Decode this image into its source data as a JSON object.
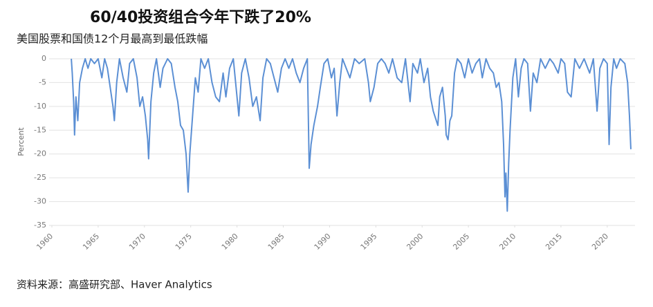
{
  "chart_data": {
    "type": "line",
    "title": "60/40投资组合今年下跌了20%",
    "subtitle": "美国股票和国债12个月最高到最低跌幅",
    "y_label": "Percent",
    "source": "资料来源：高盛研究部、Haver Analytics",
    "color": "#5b8fd4",
    "grid": true,
    "xlim": [
      1960,
      2023
    ],
    "ylim": [
      -35,
      0
    ],
    "xticks": [
      1960,
      1965,
      1970,
      1975,
      1980,
      1985,
      1990,
      1995,
      2000,
      2005,
      2010,
      2015,
      2020
    ],
    "yticks": [
      0,
      -5,
      -10,
      -15,
      -20,
      -25,
      -30,
      -35
    ],
    "x": [
      1962.1,
      1962.2,
      1962.35,
      1962.45,
      1962.6,
      1962.8,
      1963.0,
      1963.3,
      1963.6,
      1963.9,
      1964.2,
      1964.6,
      1965.0,
      1965.4,
      1965.7,
      1966.0,
      1966.3,
      1966.6,
      1966.75,
      1967.0,
      1967.3,
      1967.7,
      1968.1,
      1968.4,
      1968.8,
      1969.2,
      1969.5,
      1969.8,
      1970.1,
      1970.35,
      1970.45,
      1970.7,
      1971.0,
      1971.3,
      1971.7,
      1972.0,
      1972.5,
      1972.9,
      1973.3,
      1973.6,
      1973.9,
      1974.2,
      1974.5,
      1974.72,
      1974.9,
      1975.2,
      1975.5,
      1975.8,
      1976.1,
      1976.5,
      1976.9,
      1977.3,
      1977.7,
      1978.1,
      1978.5,
      1978.8,
      1979.2,
      1979.6,
      1979.9,
      1980.2,
      1980.5,
      1980.9,
      1981.3,
      1981.7,
      1982.1,
      1982.5,
      1982.8,
      1983.2,
      1983.6,
      1984.0,
      1984.4,
      1984.8,
      1985.2,
      1985.6,
      1986.0,
      1986.4,
      1986.8,
      1987.2,
      1987.6,
      1987.8,
      1988.0,
      1988.3,
      1988.7,
      1989.0,
      1989.4,
      1989.8,
      1990.2,
      1990.5,
      1990.8,
      1991.1,
      1991.4,
      1991.8,
      1992.2,
      1992.7,
      1993.2,
      1993.8,
      1994.2,
      1994.4,
      1994.8,
      1995.2,
      1995.6,
      1996.0,
      1996.4,
      1996.8,
      1997.3,
      1997.8,
      1998.2,
      1998.7,
      1999.0,
      1999.5,
      1999.8,
      2000.2,
      2000.6,
      2000.9,
      2001.2,
      2001.7,
      2001.9,
      2002.2,
      2002.5,
      2002.6,
      2002.8,
      2003.0,
      2003.2,
      2003.5,
      2003.8,
      2004.2,
      2004.6,
      2005.0,
      2005.4,
      2005.8,
      2006.2,
      2006.5,
      2006.9,
      2007.3,
      2007.7,
      2008.0,
      2008.3,
      2008.6,
      2008.8,
      2008.95,
      2009.05,
      2009.2,
      2009.35,
      2009.5,
      2009.8,
      2010.1,
      2010.4,
      2010.7,
      2011.0,
      2011.4,
      2011.7,
      2012.0,
      2012.4,
      2012.8,
      2013.3,
      2013.8,
      2014.2,
      2014.7,
      2015.0,
      2015.4,
      2015.7,
      2016.1,
      2016.5,
      2017.0,
      2017.5,
      2018.1,
      2018.5,
      2018.9,
      2019.2,
      2019.6,
      2020.0,
      2020.2,
      2020.4,
      2020.7,
      2021.0,
      2021.4,
      2021.9,
      2022.2,
      2022.4,
      2022.55
    ],
    "values": [
      0,
      -3,
      -9,
      -16,
      -8,
      -13,
      -5,
      -2,
      0,
      -2,
      0,
      -1,
      0,
      -4,
      0,
      -2,
      -6,
      -10,
      -13,
      -5,
      0,
      -4,
      -7,
      -1,
      0,
      -4,
      -10,
      -8,
      -12,
      -17,
      -21,
      -9,
      -3,
      0,
      -6,
      -2,
      0,
      -1,
      -6,
      -9,
      -14,
      -15,
      -20,
      -28,
      -20,
      -12,
      -4,
      -7,
      0,
      -2,
      0,
      -5,
      -8,
      -9,
      -3,
      -8,
      -2,
      0,
      -6,
      -12,
      -3,
      0,
      -4,
      -10,
      -8,
      -13,
      -4,
      0,
      -1,
      -4,
      -7,
      -2,
      0,
      -2,
      0,
      -3,
      -5,
      -2,
      0,
      -23,
      -18,
      -14,
      -10,
      -6,
      -1,
      0,
      -4,
      -2,
      -12,
      -5,
      0,
      -2,
      -4,
      0,
      -1,
      0,
      -5,
      -9,
      -6,
      -1,
      0,
      -1,
      -3,
      0,
      -4,
      -5,
      0,
      -9,
      -1,
      -3,
      0,
      -5,
      -2,
      -8,
      -11,
      -14,
      -8,
      -6,
      -12,
      -16,
      -17,
      -13,
      -12,
      -3,
      0,
      -1,
      -4,
      0,
      -3,
      -1,
      0,
      -4,
      0,
      -2,
      -3,
      -6,
      -5,
      -9,
      -18,
      -29,
      -24,
      -32,
      -22,
      -15,
      -4,
      0,
      -8,
      -2,
      0,
      -1,
      -11,
      -3,
      -5,
      0,
      -2,
      0,
      -1,
      -3,
      0,
      -1,
      -7,
      -8,
      0,
      -2,
      0,
      -3,
      0,
      -11,
      -2,
      0,
      -1,
      -18,
      -6,
      0,
      -2,
      0,
      -1,
      -5,
      -12,
      -19
    ]
  }
}
